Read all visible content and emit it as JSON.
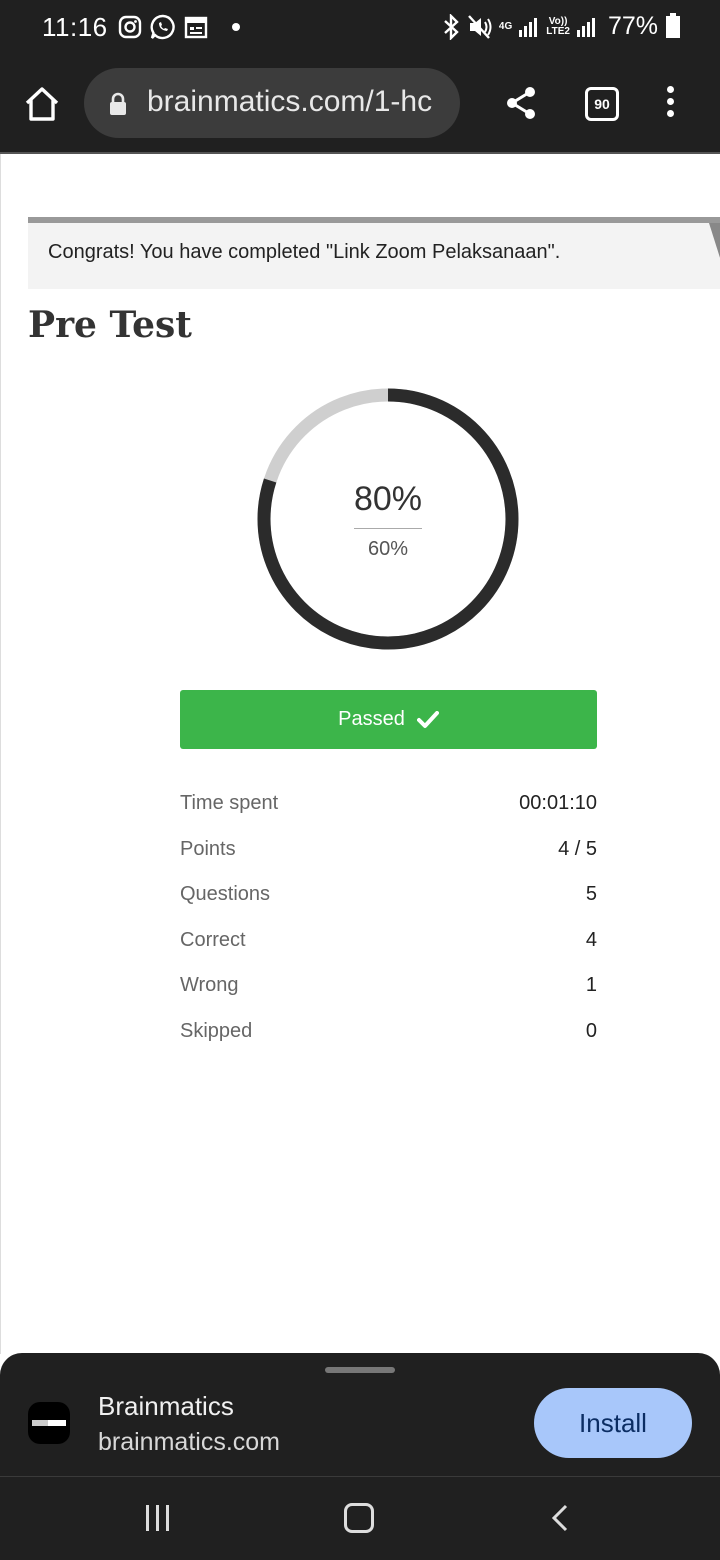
{
  "status_bar": {
    "time": "11:16",
    "network_top": "4G",
    "network_vo": "Vo))",
    "network_lte": "LTE2",
    "battery": "77%"
  },
  "browser": {
    "url": "brainmatics.com/1-hc",
    "tab_count": "90"
  },
  "notice": {
    "text": "Congrats! You have completed \"Link Zoom Pelaksanaan\"."
  },
  "quiz": {
    "title": "Pre Test",
    "score": "80%",
    "score_fraction": 0.8,
    "passing": "60%",
    "result": "Passed",
    "stats": [
      {
        "label": "Time spent",
        "value": "00:01:10"
      },
      {
        "label": "Points",
        "value": "4 / 5"
      },
      {
        "label": "Questions",
        "value": "5"
      },
      {
        "label": "Correct",
        "value": "4"
      },
      {
        "label": "Wrong",
        "value": "1"
      },
      {
        "label": "Skipped",
        "value": "0"
      }
    ]
  },
  "install_prompt": {
    "app_name": "Brainmatics",
    "domain": "brainmatics.com",
    "button": "Install"
  },
  "colors": {
    "passed_green": "#3cb54a",
    "ring_dark": "#2b2b2b",
    "ring_light": "#cfcfcf",
    "install_blue": "#a8c7fa"
  },
  "icons": [
    "instagram-icon",
    "whatsapp-icon",
    "calendar-icon",
    "bluetooth-icon",
    "mute-icon",
    "signal-icon",
    "battery-icon",
    "home-icon",
    "lock-icon",
    "share-icon",
    "menu-icon",
    "check-icon",
    "recents-icon",
    "nav-home-icon",
    "back-icon"
  ]
}
